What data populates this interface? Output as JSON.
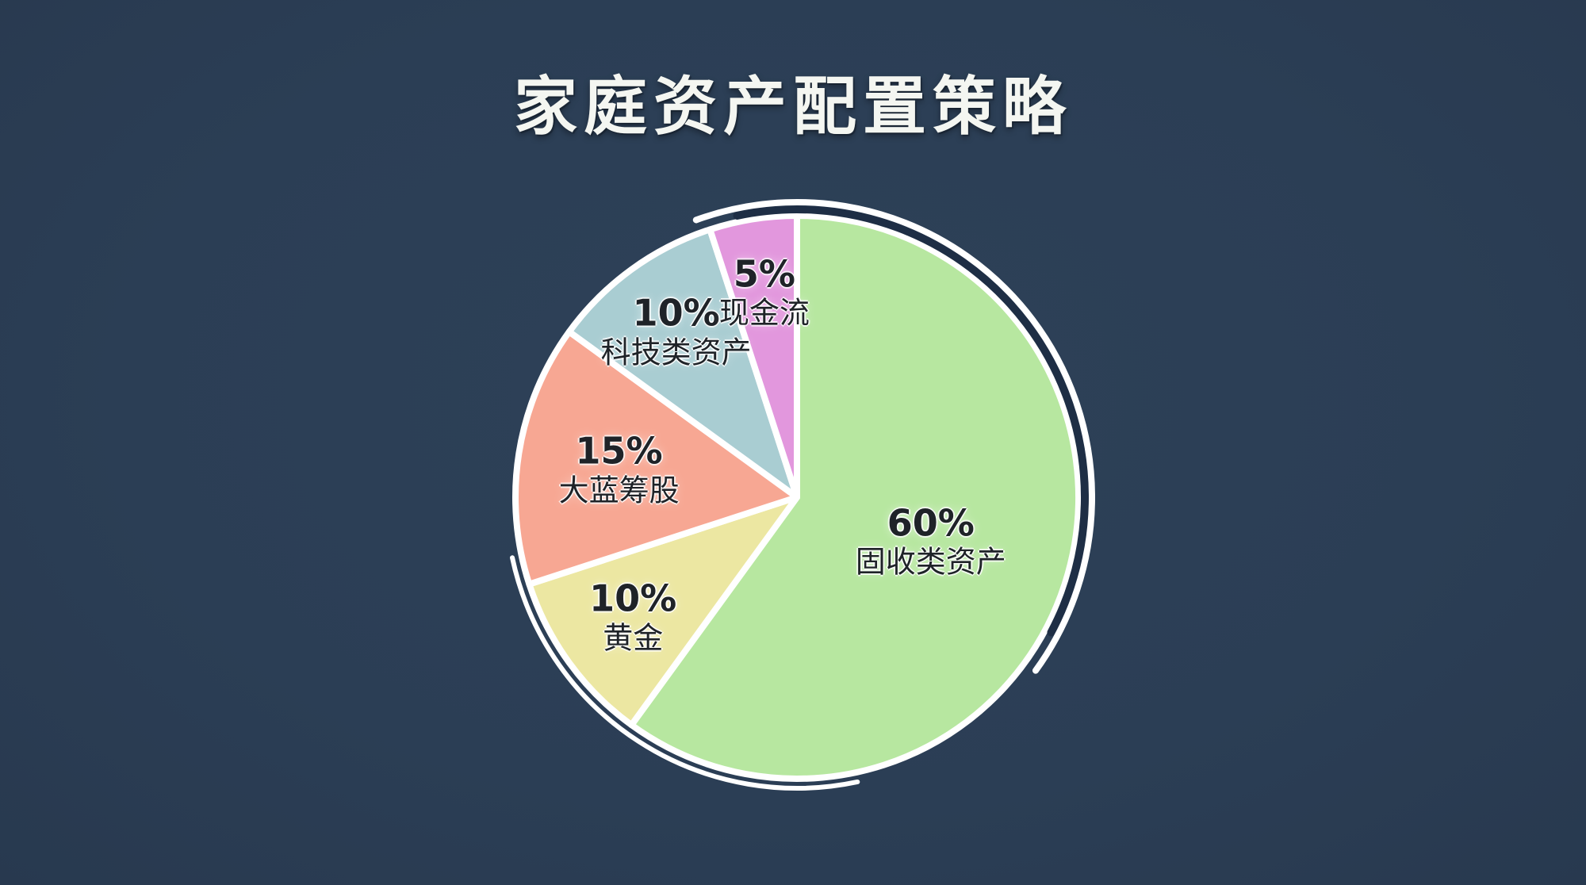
{
  "page": {
    "background_color": "#2b3e55"
  },
  "title": {
    "text": "家庭资产配置策略",
    "color": "#f4f6f1"
  },
  "chart_data": {
    "type": "pie",
    "title": "家庭资产配置策略",
    "unit": "%",
    "start_angle_deg": 0,
    "direction": "clockwise",
    "legend": "none",
    "style": "hand-drawn, white slice outlines, dark sketch arc on outer top-right rim",
    "slices": [
      {
        "label": "固收类资产",
        "value": 60,
        "pct_label": "60%",
        "color": "#b7e7a0",
        "label_radius_factor": 0.5
      },
      {
        "label": "黄金",
        "value": 10,
        "pct_label": "10%",
        "color": "#ece7a2",
        "label_radius_factor": 0.72
      },
      {
        "label": "大蓝筹股",
        "value": 15,
        "pct_label": "15%",
        "color": "#f7a793",
        "label_radius_factor": 0.64
      },
      {
        "label": "科技类资产",
        "value": 10,
        "pct_label": "10%",
        "color": "#a9cdd2",
        "label_radius_factor": 0.73
      },
      {
        "label": "现金流",
        "value": 5,
        "pct_label": "5%",
        "color": "#e297dd",
        "label_radius_factor": 0.74
      }
    ],
    "label_text_color": "#1f2328",
    "outline_color": "#ffffff",
    "sketch_line_color": "#1e2e45"
  }
}
